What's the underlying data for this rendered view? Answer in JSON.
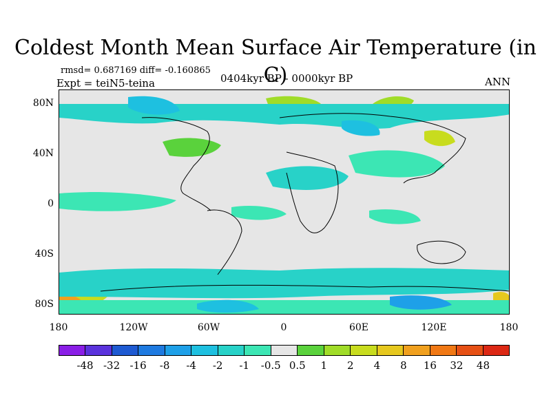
{
  "title": "Coldest Month Mean Surface Air Temperature (in C)",
  "stats": "rmsd= 0.687169 diff= -0.160865",
  "experiment": "Expt = teiN5-teina",
  "period": "0404kyr BP - 0000kyr BP",
  "season": "ANN",
  "y_ticks": [
    "80N",
    "40N",
    "0",
    "40S",
    "80S"
  ],
  "x_ticks": [
    "180",
    "120W",
    "60W",
    "0",
    "60E",
    "120E",
    "180"
  ],
  "colorbar": {
    "labels": [
      "-48",
      "-32",
      "-16",
      "-8",
      "-4",
      "-2",
      "-1",
      "-0.5",
      "0.5",
      "1",
      "2",
      "4",
      "8",
      "16",
      "32",
      "48"
    ],
    "colors": [
      "#8a1ee6",
      "#5a32dc",
      "#1e5ad2",
      "#1e7ae0",
      "#1ea0e8",
      "#1ec0e0",
      "#28d2c8",
      "#3ce6b4",
      "#e6e6e6",
      "#5ad23c",
      "#a0dc28",
      "#c8dc1e",
      "#e6c81e",
      "#f0a01e",
      "#f07814",
      "#e65014",
      "#dc2814"
    ]
  }
}
